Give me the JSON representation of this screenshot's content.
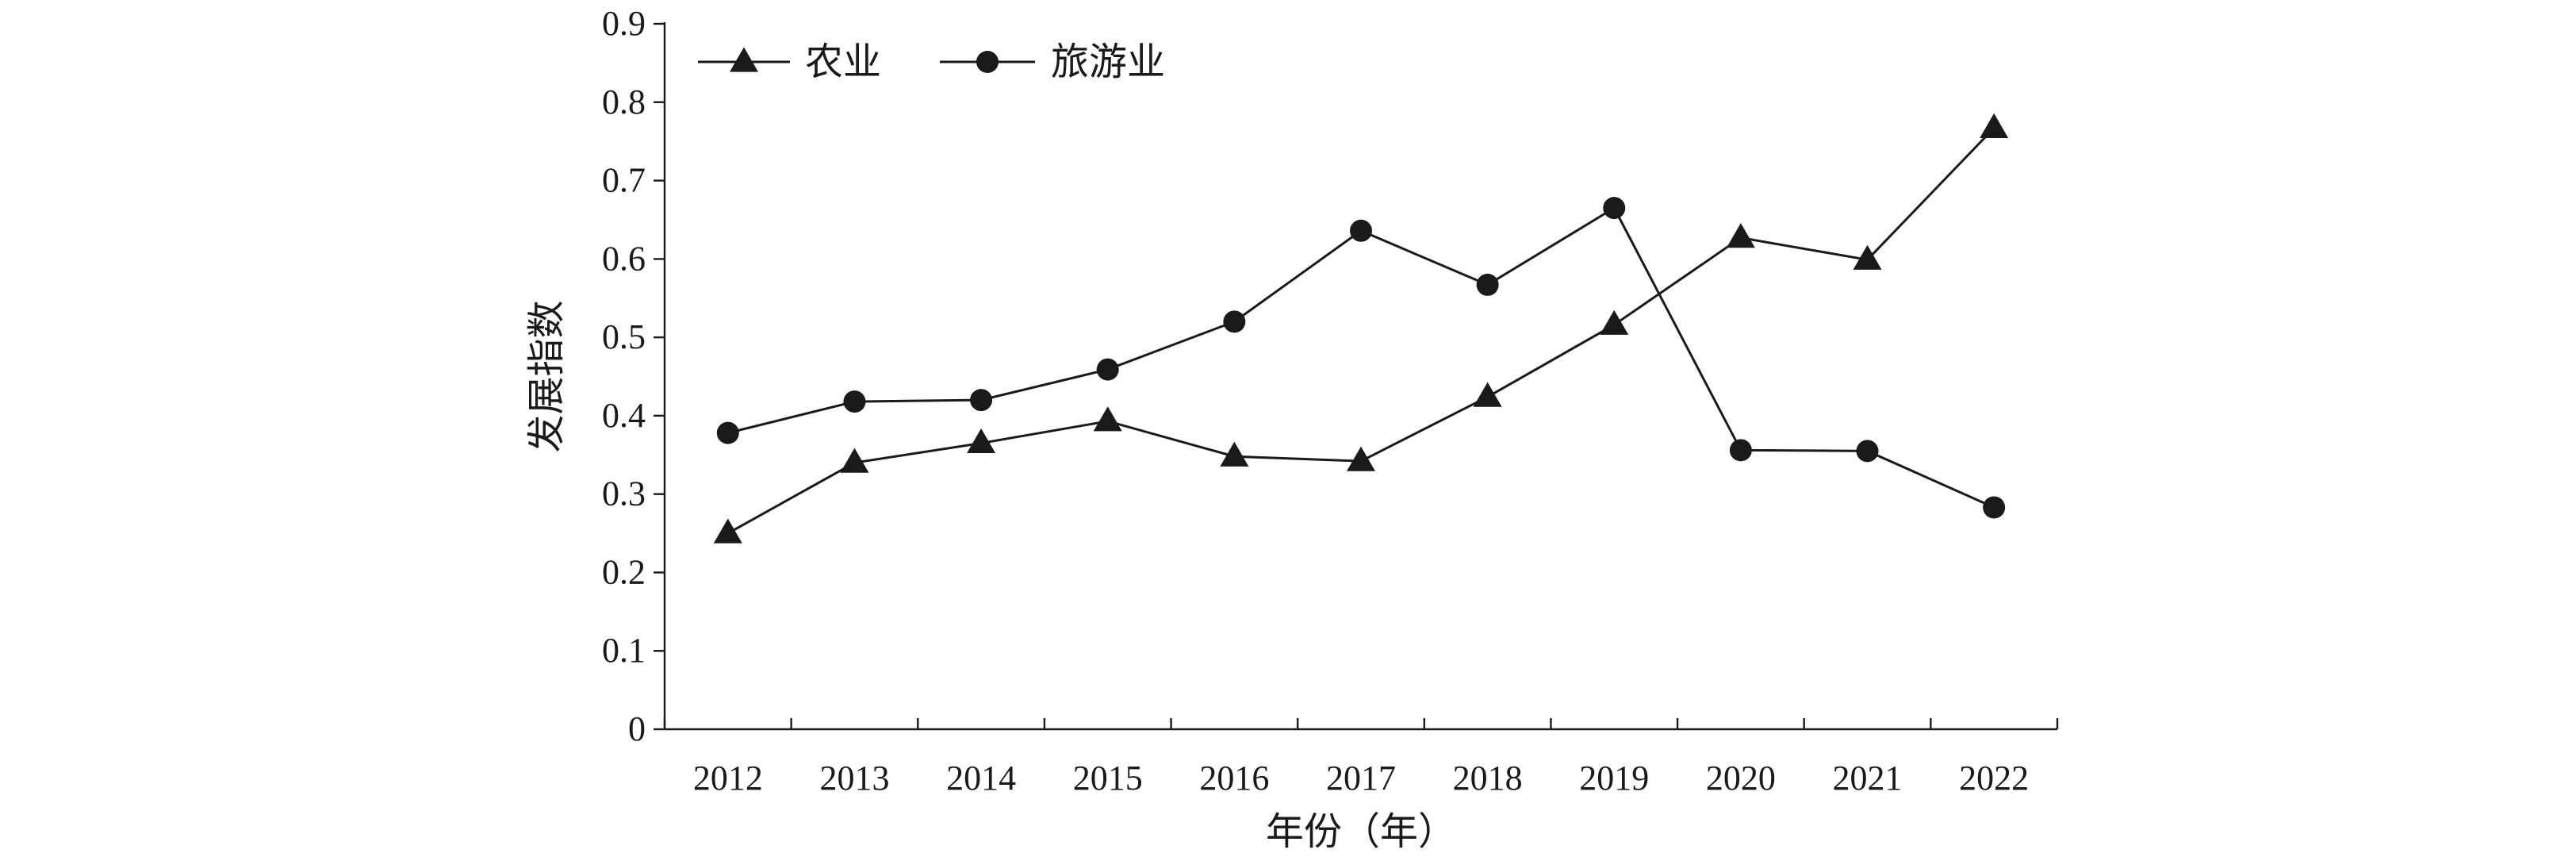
{
  "chart_data": {
    "type": "line",
    "title": "",
    "xlabel": "年份（年）",
    "ylabel": "发展指数",
    "categories": [
      "2012",
      "2013",
      "2014",
      "2015",
      "2016",
      "2017",
      "2018",
      "2019",
      "2020",
      "2021",
      "2022"
    ],
    "ylim": [
      0,
      0.9
    ],
    "yticks": [
      "0",
      "0.1",
      "0.2",
      "0.3",
      "0.4",
      "0.5",
      "0.6",
      "0.7",
      "0.8",
      "0.9"
    ],
    "grid": false,
    "legend_position": "top-left",
    "series": [
      {
        "name": "农业",
        "marker": "triangle",
        "values": [
          0.25,
          0.34,
          0.365,
          0.393,
          0.348,
          0.342,
          0.424,
          0.516,
          0.627,
          0.599,
          0.767
        ]
      },
      {
        "name": "旅游业",
        "marker": "circle",
        "values": [
          0.378,
          0.418,
          0.42,
          0.459,
          0.52,
          0.636,
          0.567,
          0.665,
          0.356,
          0.355,
          0.283
        ]
      }
    ],
    "colors": {
      "line": "#1a1a1a",
      "marker": "#1a1a1a"
    }
  }
}
